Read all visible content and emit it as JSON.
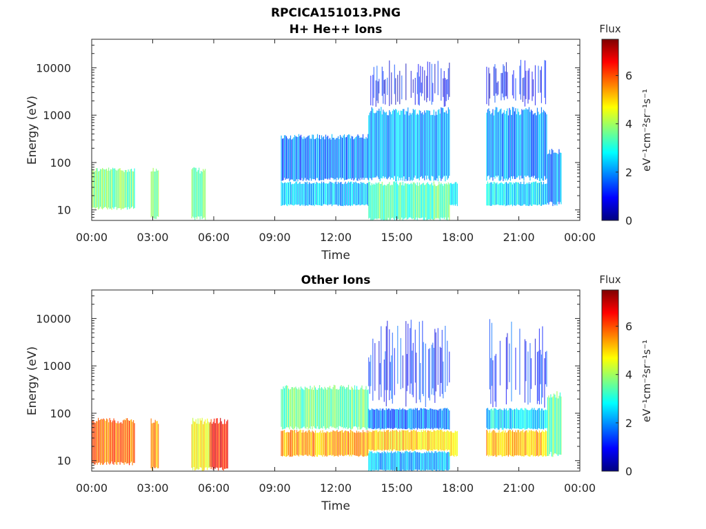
{
  "title": "RPCICA151013.PNG",
  "chart_data": [
    {
      "type": "heatmap",
      "title": "H+ He++ Ions",
      "xlabel": "Time",
      "ylabel": "Energy (eV)",
      "x_ticks": [
        "00:00",
        "03:00",
        "06:00",
        "09:00",
        "12:00",
        "15:00",
        "18:00",
        "21:00",
        "00:00"
      ],
      "x_range_hours": [
        0,
        24
      ],
      "y_scale": "log",
      "y_range": [
        6,
        40000
      ],
      "y_ticks": [
        10,
        100,
        1000,
        10000
      ],
      "colorbar": {
        "label_top": "Flux",
        "label_side": "eV⁻¹cm⁻²sr⁻¹s⁻¹",
        "range": [
          0,
          7.5
        ],
        "ticks": [
          0,
          2,
          4,
          6
        ],
        "colormap": "jet"
      },
      "segments": [
        {
          "t_start": 0.0,
          "t_end": 2.1,
          "e_min": 10,
          "e_max": 80,
          "level": 3.6
        },
        {
          "t_start": 2.9,
          "t_end": 3.3,
          "e_min": 6,
          "e_max": 80,
          "level": 3.8
        },
        {
          "t_start": 4.9,
          "t_end": 5.6,
          "e_min": 6,
          "e_max": 80,
          "level": 3.6
        },
        {
          "t_start": 9.3,
          "t_end": 13.6,
          "e_min": 12,
          "e_max": 40,
          "level": 2.3
        },
        {
          "t_start": 9.3,
          "t_end": 13.6,
          "e_min": 40,
          "e_max": 400,
          "level": 1.8
        },
        {
          "t_start": 13.6,
          "t_end": 17.6,
          "e_min": 6,
          "e_max": 40,
          "level": 3.4
        },
        {
          "t_start": 13.6,
          "t_end": 17.6,
          "e_min": 40,
          "e_max": 1500,
          "level": 2.2
        },
        {
          "t_start": 13.6,
          "t_end": 17.6,
          "e_min": 1500,
          "e_max": 15000,
          "level": 1.0
        },
        {
          "t_start": 17.6,
          "t_end": 18.0,
          "e_min": 12,
          "e_max": 40,
          "level": 2.5
        },
        {
          "t_start": 19.4,
          "t_end": 22.4,
          "e_min": 12,
          "e_max": 40,
          "level": 2.6
        },
        {
          "t_start": 19.4,
          "t_end": 22.4,
          "e_min": 40,
          "e_max": 1500,
          "level": 2.0
        },
        {
          "t_start": 19.4,
          "t_end": 22.4,
          "e_min": 1500,
          "e_max": 15000,
          "level": 0.9
        },
        {
          "t_start": 22.4,
          "t_end": 23.1,
          "e_min": 12,
          "e_max": 200,
          "level": 2.0
        }
      ]
    },
    {
      "type": "heatmap",
      "title": "Other Ions",
      "xlabel": "Time",
      "ylabel": "Energy (eV)",
      "x_ticks": [
        "00:00",
        "03:00",
        "06:00",
        "09:00",
        "12:00",
        "15:00",
        "18:00",
        "21:00",
        "00:00"
      ],
      "x_range_hours": [
        0,
        24
      ],
      "y_scale": "log",
      "y_range": [
        6,
        40000
      ],
      "y_ticks": [
        10,
        100,
        1000,
        10000
      ],
      "colorbar": {
        "label_top": "Flux",
        "label_side": "eV⁻¹cm⁻²sr⁻¹s⁻¹",
        "range": [
          0,
          7.5
        ],
        "ticks": [
          0,
          2,
          4,
          6
        ],
        "colormap": "jet"
      },
      "segments": [
        {
          "t_start": 0.0,
          "t_end": 2.1,
          "e_min": 8,
          "e_max": 80,
          "level": 5.8
        },
        {
          "t_start": 2.9,
          "t_end": 3.3,
          "e_min": 6,
          "e_max": 80,
          "level": 5.5
        },
        {
          "t_start": 4.9,
          "t_end": 5.8,
          "e_min": 6,
          "e_max": 80,
          "level": 4.8
        },
        {
          "t_start": 5.8,
          "t_end": 6.7,
          "e_min": 6,
          "e_max": 80,
          "level": 6.4
        },
        {
          "t_start": 9.3,
          "t_end": 13.6,
          "e_min": 12,
          "e_max": 45,
          "level": 5.3
        },
        {
          "t_start": 9.3,
          "t_end": 13.6,
          "e_min": 45,
          "e_max": 400,
          "level": 3.5
        },
        {
          "t_start": 13.6,
          "t_end": 17.6,
          "e_min": 6,
          "e_max": 16,
          "level": 2.2
        },
        {
          "t_start": 13.6,
          "t_end": 17.6,
          "e_min": 16,
          "e_max": 45,
          "level": 5.0
        },
        {
          "t_start": 13.6,
          "t_end": 17.6,
          "e_min": 45,
          "e_max": 130,
          "level": 1.8
        },
        {
          "t_start": 13.6,
          "t_end": 17.6,
          "e_min": 130,
          "e_max": 10000,
          "level": 1.2
        },
        {
          "t_start": 17.6,
          "t_end": 18.0,
          "e_min": 12,
          "e_max": 45,
          "level": 5.2
        },
        {
          "t_start": 19.4,
          "t_end": 22.4,
          "e_min": 12,
          "e_max": 45,
          "level": 5.2
        },
        {
          "t_start": 19.4,
          "t_end": 22.4,
          "e_min": 45,
          "e_max": 130,
          "level": 2.6
        },
        {
          "t_start": 19.4,
          "t_end": 22.4,
          "e_min": 130,
          "e_max": 10000,
          "level": 1.2
        },
        {
          "t_start": 22.4,
          "t_end": 23.1,
          "e_min": 12,
          "e_max": 300,
          "level": 3.6
        }
      ]
    }
  ]
}
